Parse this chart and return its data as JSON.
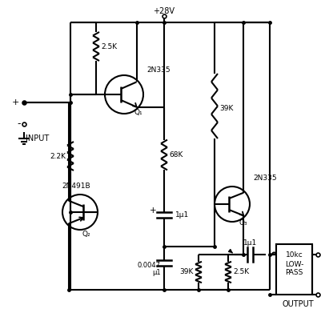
{
  "fig_w": 4.02,
  "fig_h": 4.01,
  "dpi": 100,
  "lw": 1.5,
  "lc": "black",
  "labels": {
    "power": "+28V",
    "input_p": "+",
    "input_m": "-",
    "input": "INPUT",
    "q1_name": "2N335",
    "q1_lbl": "Q₁",
    "q2_name": "2N491B",
    "q2_lbl": "Q₂",
    "q3_name": "2N335",
    "q3_lbl": "Q₃",
    "r_25k_top": "2.5K",
    "r_22k": "2.2K",
    "r_68k": "68K",
    "r_39k_mid": "39K",
    "r_39k_bot": "39K",
    "r_25k_bot": "2.5K",
    "c1_lbl": "1μ1",
    "c2_lbl1": "0.0047",
    "c2_lbl2": "μ1",
    "c3_lbl": "1μ1",
    "lp1": "10kc",
    "lp2": "LOW-",
    "lp3": "PASS",
    "output": "OUTPUT"
  }
}
